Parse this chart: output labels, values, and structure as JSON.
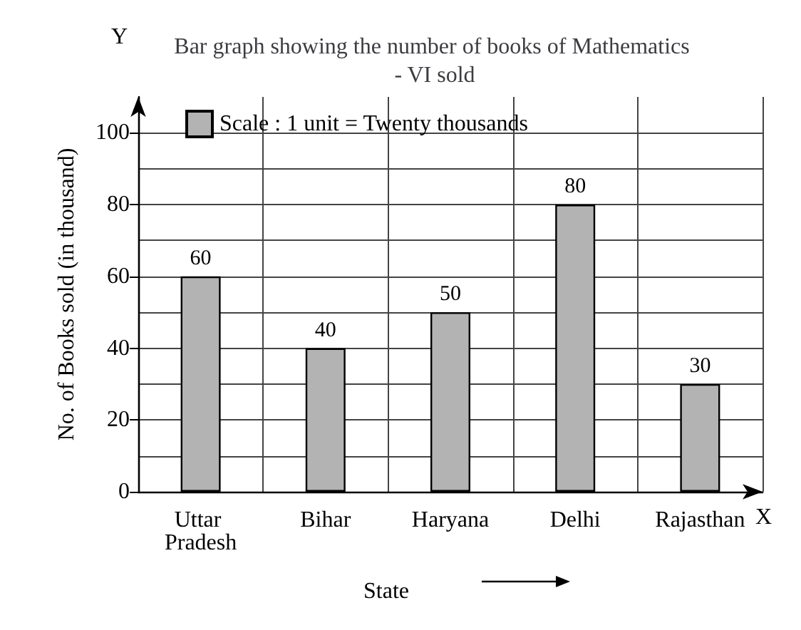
{
  "chart_data": {
    "type": "bar",
    "title": "Bar graph showing the number of books of Mathematics - VI sold",
    "xlabel": "State",
    "ylabel": "No. of Books sold (in thousand)",
    "annotations": [
      "Y",
      "X"
    ],
    "categories": [
      "Uttar Pradesh",
      "Bihar",
      "Haryana",
      "Delhi",
      "Rajasthan"
    ],
    "series": [
      {
        "name": "Scale : 1 unit = Twenty thousands",
        "color": "#b3b3b3",
        "values": [
          60,
          40,
          50,
          80,
          30
        ]
      }
    ],
    "ylim": [
      0,
      110
    ],
    "yticks": [
      0,
      20,
      40,
      60,
      80,
      100
    ],
    "data_labels": true,
    "grid": true,
    "legend": "top left"
  }
}
